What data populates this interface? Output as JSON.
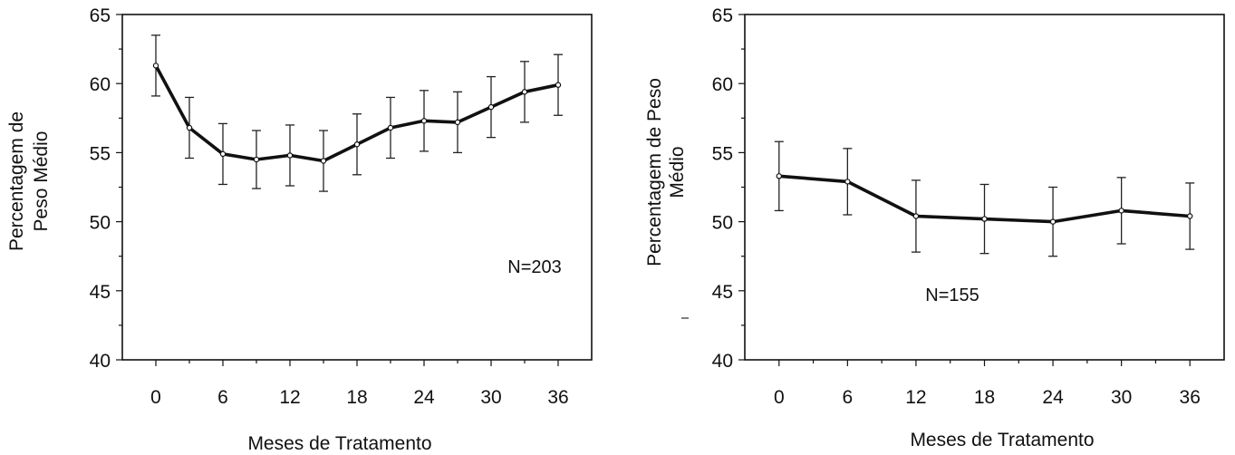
{
  "chart_data": [
    {
      "type": "line",
      "title": "",
      "xlabel": "Meses de Tratamento",
      "ylabel": [
        "Percentagem de",
        "Peso Médio"
      ],
      "annotation": "N=203",
      "x_ticks": [
        "0",
        "6",
        "12",
        "18",
        "24",
        "30",
        "36"
      ],
      "y_ticks": [
        "40",
        "45",
        "50",
        "55",
        "60",
        "65"
      ],
      "xlim": [
        -3,
        39
      ],
      "ylim": [
        40,
        65
      ],
      "grid": false,
      "series": [
        {
          "x": [
            0,
            3,
            6,
            9,
            12,
            15,
            18,
            21,
            24,
            27,
            30,
            33,
            36
          ],
          "values": [
            61.3,
            56.8,
            54.9,
            54.5,
            54.8,
            54.4,
            55.6,
            56.8,
            57.3,
            57.2,
            58.3,
            59.4,
            59.9
          ],
          "error": [
            2.2,
            2.2,
            2.2,
            2.1,
            2.2,
            2.2,
            2.2,
            2.2,
            2.2,
            2.2,
            2.2,
            2.2,
            2.2
          ]
        }
      ]
    },
    {
      "type": "line",
      "title": "",
      "xlabel": "Meses de Tratamento",
      "ylabel": [
        "Percentagem de Peso",
        "Médio"
      ],
      "annotation": "N=155",
      "x_ticks": [
        "0",
        "6",
        "12",
        "18",
        "24",
        "30",
        "36"
      ],
      "y_ticks": [
        "40",
        "45",
        "50",
        "55",
        "60",
        "65"
      ],
      "xlim": [
        -3,
        39
      ],
      "ylim": [
        40,
        65
      ],
      "grid": false,
      "series": [
        {
          "x": [
            0,
            6,
            12,
            18,
            24,
            30,
            36
          ],
          "values": [
            53.3,
            52.9,
            50.4,
            50.2,
            50.0,
            50.8,
            50.4
          ],
          "error": [
            2.5,
            2.4,
            2.6,
            2.5,
            2.5,
            2.4,
            2.4
          ]
        }
      ]
    }
  ]
}
